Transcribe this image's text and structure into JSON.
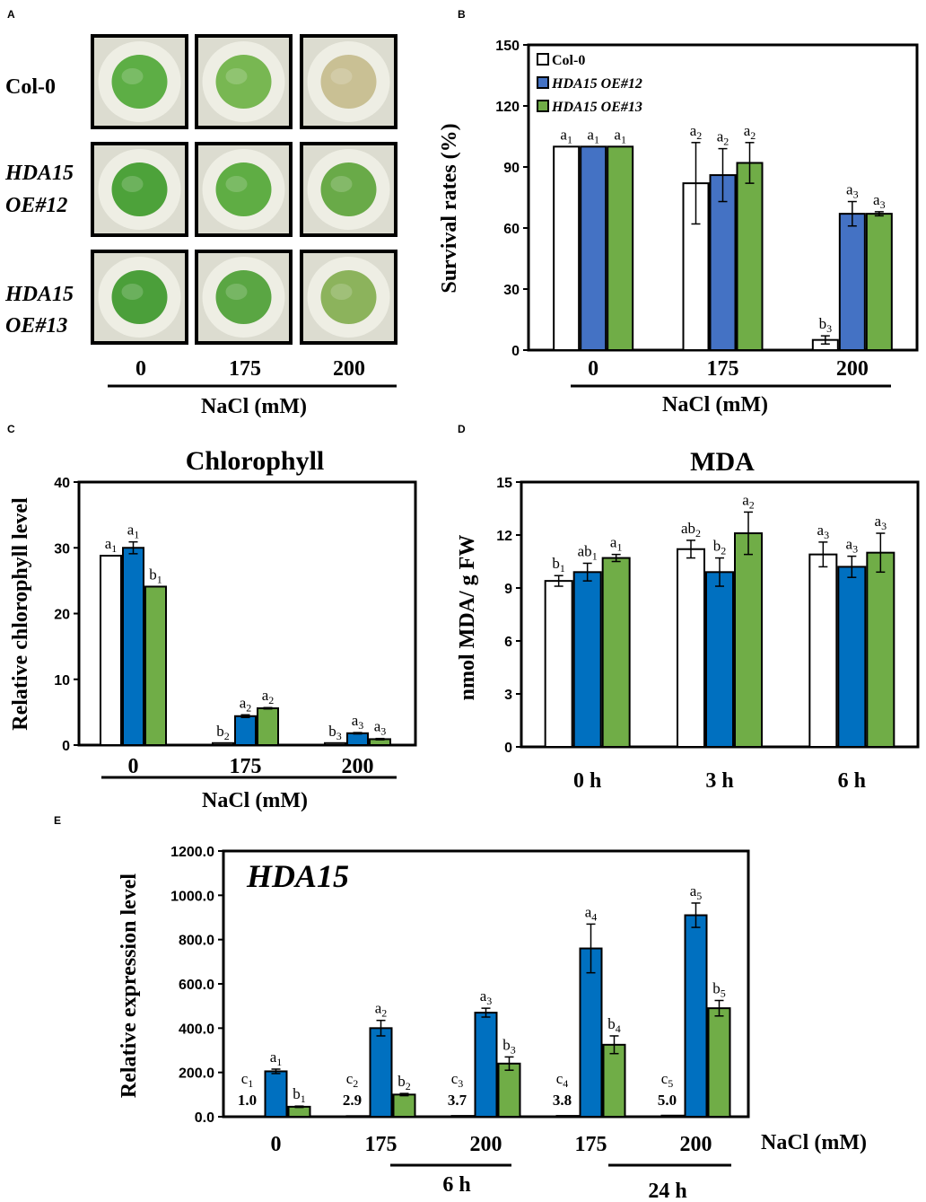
{
  "panels": {
    "A": {
      "letter": "A",
      "rows": [
        {
          "line1": "Col-0",
          "line2": "",
          "italic": false
        },
        {
          "line1": "HDA15",
          "line2": "OE#12",
          "italic": true
        },
        {
          "line1": "HDA15",
          "line2": "OE#13",
          "italic": true
        }
      ],
      "columns": [
        "0",
        "175",
        "200"
      ],
      "xlabel": "NaCl (mM)",
      "photo_colors": [
        [
          "#5dae45",
          "#78b752",
          "#c9c094"
        ],
        [
          "#4da23a",
          "#5fad44",
          "#69aa48"
        ],
        [
          "#4b9f3a",
          "#5aa643",
          "#8cb35c"
        ]
      ]
    }
  },
  "colors": {
    "col0": "#ffffff",
    "oe12_B": "#4472c4",
    "oe13_B": "#70ad47",
    "oe12": "#0070c0",
    "oe13": "#70ad47"
  },
  "chart_data": [
    {
      "panel": "B",
      "type": "bar",
      "ylabel": "Survival rates (%)",
      "xlabel": "NaCl (mM)",
      "categories": [
        "0",
        "175",
        "200"
      ],
      "ylim": [
        0,
        150
      ],
      "yticks": [
        "0",
        "30",
        "60",
        "90",
        "120",
        "150"
      ],
      "legend": [
        "Col-0",
        "HDA15 OE#12",
        "HDA15 OE#13"
      ],
      "legend_position": "top-left",
      "series": [
        {
          "name": "Col-0",
          "values": [
            100,
            82,
            5
          ],
          "errors": [
            0,
            20,
            2
          ],
          "labels": [
            "a1",
            "a2",
            "b3"
          ]
        },
        {
          "name": "HDA15 OE#12",
          "values": [
            100,
            86,
            67
          ],
          "errors": [
            0,
            13,
            6
          ],
          "labels": [
            "a1",
            "a2",
            "a3"
          ]
        },
        {
          "name": "HDA15 OE#13",
          "values": [
            100,
            92,
            67
          ],
          "errors": [
            0,
            10,
            1
          ],
          "labels": [
            "a1",
            "a2",
            "a3"
          ]
        }
      ]
    },
    {
      "panel": "C",
      "type": "bar",
      "title": "Chlorophyll",
      "ylabel": "Relative chlorophyll level",
      "xlabel": "NaCl (mM)",
      "categories": [
        "0",
        "175",
        "200"
      ],
      "ylim": [
        0,
        40
      ],
      "yticks": [
        "0",
        "10",
        "20",
        "30",
        "40"
      ],
      "series": [
        {
          "name": "Col-0",
          "values": [
            28.8,
            0.3,
            0.3
          ],
          "errors": [
            0,
            0,
            0
          ],
          "labels": [
            "a1",
            "b2",
            "b3"
          ]
        },
        {
          "name": "HDA15 OE#12",
          "values": [
            30.0,
            4.4,
            1.8
          ],
          "errors": [
            0.9,
            0.2,
            0.1
          ],
          "labels": [
            "a1",
            "a2",
            "a3"
          ]
        },
        {
          "name": "HDA15 OE#13",
          "values": [
            24.1,
            5.6,
            0.9
          ],
          "errors": [
            0,
            0.1,
            0.1
          ],
          "labels": [
            "b1",
            "a2",
            "a3"
          ]
        }
      ]
    },
    {
      "panel": "D",
      "type": "bar",
      "title": "MDA",
      "ylabel": "nmol MDA/ g FW",
      "categories": [
        "0 h",
        "3 h",
        "6 h"
      ],
      "ylim": [
        0,
        15
      ],
      "yticks": [
        "0",
        "3",
        "6",
        "9",
        "12",
        "15"
      ],
      "series": [
        {
          "name": "Col-0",
          "values": [
            9.4,
            11.2,
            10.9
          ],
          "errors": [
            0.3,
            0.5,
            0.7
          ],
          "labels": [
            "b1",
            "ab2",
            "a3"
          ]
        },
        {
          "name": "HDA15 OE#12",
          "values": [
            9.9,
            9.9,
            10.2
          ],
          "errors": [
            0.5,
            0.8,
            0.6
          ],
          "labels": [
            "ab1",
            "b2",
            "a3"
          ]
        },
        {
          "name": "HDA15 OE#13",
          "values": [
            10.7,
            12.1,
            11.0
          ],
          "errors": [
            0.2,
            1.2,
            1.1
          ],
          "labels": [
            "a1",
            "a2",
            "a3"
          ]
        }
      ]
    },
    {
      "panel": "E",
      "type": "bar",
      "title": "HDA15",
      "ylabel": "Relative expression level",
      "xlabel": "NaCl (mM)",
      "categories": [
        "0",
        "175",
        "200",
        "175",
        "200"
      ],
      "groups": [
        {
          "label": "6 h",
          "span": [
            1,
            2
          ]
        },
        {
          "label": "24 h",
          "span": [
            3,
            4
          ]
        }
      ],
      "ylim": [
        0,
        1200
      ],
      "yticks": [
        "0.0",
        "200.0",
        "400.0",
        "600.0",
        "800.0",
        "1000.0",
        "1200.0"
      ],
      "fold_labels": [
        "1.0",
        "2.9",
        "3.7",
        "3.8",
        "5.0"
      ],
      "series": [
        {
          "name": "Col-0",
          "values": [
            1.0,
            2.9,
            3.7,
            3.8,
            5.0
          ],
          "errors": [
            0,
            0,
            0,
            0,
            0
          ],
          "labels": [
            "c1",
            "c2",
            "c3",
            "c4",
            "c5"
          ]
        },
        {
          "name": "HDA15 OE#12",
          "values": [
            205,
            400,
            470,
            760,
            910
          ],
          "errors": [
            10,
            35,
            20,
            110,
            55
          ],
          "labels": [
            "a1",
            "a2",
            "a3",
            "a4",
            "a5"
          ]
        },
        {
          "name": "HDA15 OE#13",
          "values": [
            45,
            100,
            240,
            325,
            490
          ],
          "errors": [
            3,
            5,
            30,
            40,
            35
          ],
          "labels": [
            "b1",
            "b2",
            "b3",
            "b4",
            "b5"
          ]
        }
      ]
    }
  ]
}
